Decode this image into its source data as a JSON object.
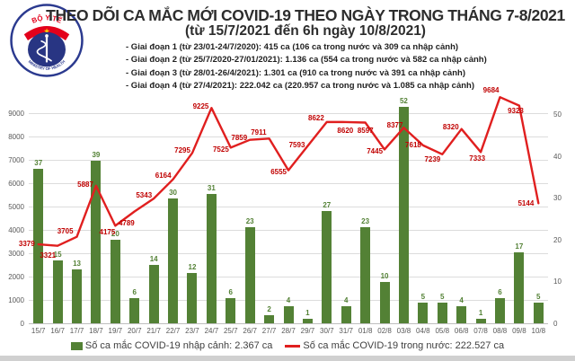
{
  "header": {
    "title_line1": "THEO DÕI CA MẮC MỚI COVID-19 THEO NGÀY TRONG THÁNG 7-8/2021",
    "title_line2": "(từ 15/7/2021 đến 6h ngày 10/8/2021)",
    "stages": [
      "- Giai đoạn 1 (từ 23/01-24/7/2020): 415 ca (106 ca trong nước và 309 ca nhập cảnh)",
      "- Giai đoạn 2 (từ 25/7/2020-27/01/2021): 1.136 ca (554 ca trong nước và 582 ca nhập cảnh)",
      "- Giai đoạn 3 (từ 28/01-26/4/2021): 1.301 ca (910 ca trong nước và 391 ca nhập cảnh)",
      "- Giai đoạn 4 (từ 27/4/2021): 222.042 ca (220.957 ca trong nước và 1.085 ca nhập cảnh)"
    ]
  },
  "logo": {
    "top_text": "BỘ Y TẾ",
    "bottom_text": "MINISTRY OF HEALTH",
    "symbol": "rod-of-asclepius"
  },
  "chart_data": {
    "type": "bar+line",
    "categories": [
      "15/7",
      "16/7",
      "17/7",
      "18/7",
      "19/7",
      "20/7",
      "21/7",
      "22/7",
      "23/7",
      "24/7",
      "25/7",
      "26/7",
      "27/7",
      "28/7",
      "29/7",
      "30/7",
      "31/7",
      "01/8",
      "02/8",
      "03/8",
      "04/8",
      "05/8",
      "06/8",
      "07/8",
      "08/8",
      "09/8",
      "10/8"
    ],
    "series": [
      {
        "name": "Số ca mắc COVID-19 nhập cảnh",
        "type": "bar",
        "axis": "right",
        "values": [
          37,
          15,
          13,
          39,
          20,
          6,
          14,
          30,
          12,
          31,
          6,
          23,
          2,
          4,
          1,
          27,
          4,
          23,
          10,
          52,
          5,
          5,
          4,
          1,
          6,
          17,
          5
        ]
      },
      {
        "name": "Số ca mắc COVID-19 trong nước",
        "type": "line",
        "axis": "left",
        "values": [
          3379,
          3321,
          3705,
          5887,
          4175,
          4789,
          5343,
          6164,
          7295,
          9225,
          7525,
          7859,
          7911,
          6555,
          7593,
          8622,
          8620,
          8597,
          7445,
          8377,
          7618,
          7239,
          8320,
          7333,
          9684,
          9323,
          5144
        ]
      }
    ],
    "left_axis": {
      "min": 0,
      "max": 10000,
      "ticks": [
        0,
        1000,
        2000,
        3000,
        4000,
        5000,
        6000,
        7000,
        8000,
        9000
      ]
    },
    "right_axis": {
      "min": 0,
      "max": 56,
      "ticks": [
        0,
        10,
        20,
        30,
        40,
        50
      ]
    },
    "grid": true,
    "legend_position": "bottom",
    "title": "THEO DÕI CA MẮC MỚI COVID-19 THEO NGÀY TRONG THÁNG 7-8/2021"
  },
  "legend": {
    "bar_label": "Số ca mắc COVID-19 nhập cảnh: 2.367 ca",
    "line_label": "Số ca mắc COVID-19 trong nước: 222.527 ca"
  },
  "colors": {
    "bar": "#538135",
    "line": "#e01f1f",
    "line_label": "#c00000",
    "axis_text": "#595959",
    "grid": "#dcdcdc",
    "title": "#2d2d2d",
    "logo_blue": "#283583",
    "logo_red": "#e3001b",
    "star_yellow": "#ffd500"
  }
}
